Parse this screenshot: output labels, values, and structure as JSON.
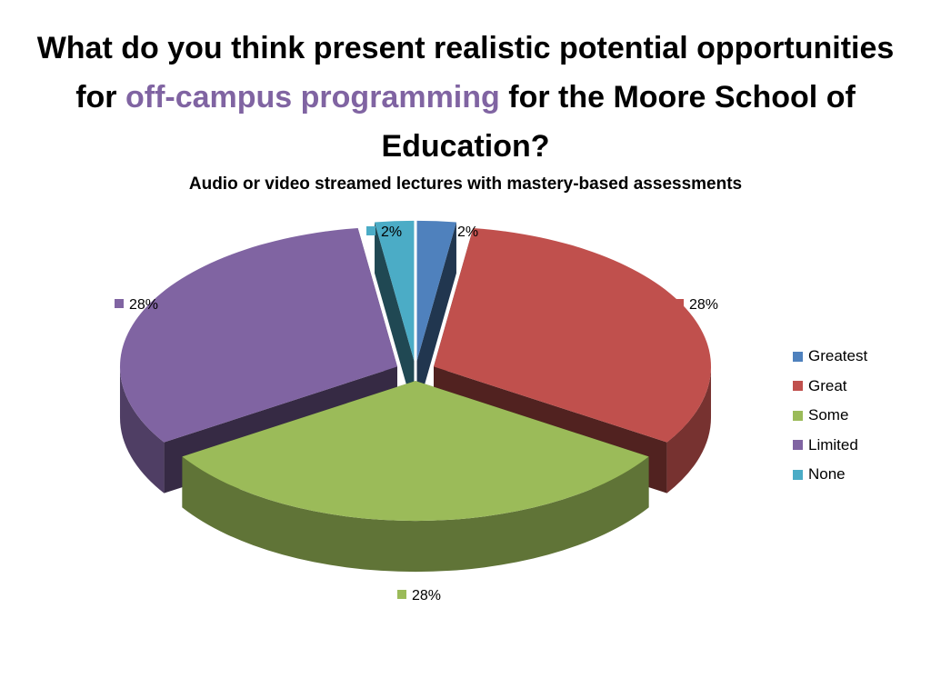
{
  "slide": {
    "title_part1": "What do you think present realistic potential opportunities for ",
    "title_highlight": "off-campus programming",
    "title_part2": " for the Moore School of Education?",
    "highlight_color": "#8064A2"
  },
  "chart_data": {
    "type": "pie",
    "title": "Audio or video streamed lectures with mastery-based assessments",
    "categories": [
      "Greatest",
      "Great",
      "Some",
      "Limited",
      "None"
    ],
    "values": [
      2,
      28,
      28,
      28,
      2
    ],
    "data_labels": [
      "2%",
      "28%",
      "28%",
      "28%",
      "2%"
    ],
    "colors": [
      "#4F81BD",
      "#C0504D",
      "#9BBB59",
      "#8064A2",
      "#4BACC6"
    ],
    "exploded": true,
    "three_d": true,
    "legend_position": "right"
  }
}
